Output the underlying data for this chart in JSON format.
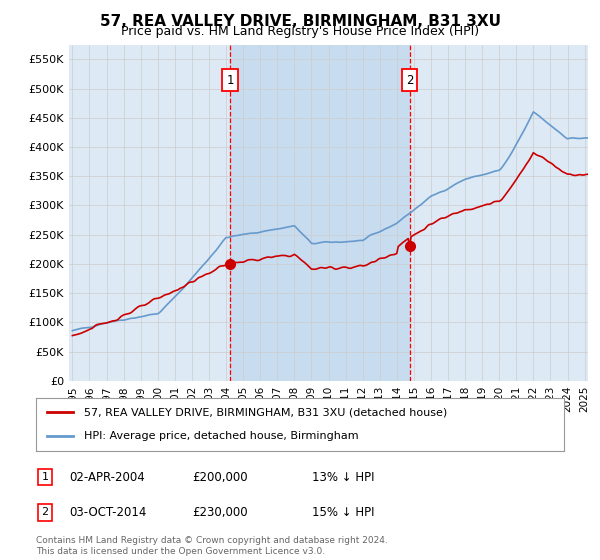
{
  "title": "57, REA VALLEY DRIVE, BIRMINGHAM, B31 3XU",
  "subtitle": "Price paid vs. HM Land Registry's House Price Index (HPI)",
  "background_color": "#ffffff",
  "plot_bg_color": "#ddeaf5",
  "shade_color": "#c8dcf0",
  "grid_color": "#cccccc",
  "red_line_color": "#cc0000",
  "blue_line_color": "#6699cc",
  "sale1_year": 2004.25,
  "sale1_price": 200000,
  "sale2_year": 2014.75,
  "sale2_price": 230000,
  "legend_label_red": "57, REA VALLEY DRIVE, BIRMINGHAM, B31 3XU (detached house)",
  "legend_label_blue": "HPI: Average price, detached house, Birmingham",
  "annotation1_col1": "02-APR-2004",
  "annotation1_col2": "£200,000",
  "annotation1_col3": "13% ↓ HPI",
  "annotation2_col1": "03-OCT-2014",
  "annotation2_col2": "£230,000",
  "annotation2_col3": "15% ↓ HPI",
  "footnote": "Contains HM Land Registry data © Crown copyright and database right 2024.\nThis data is licensed under the Open Government Licence v3.0.",
  "ylim": [
    0,
    575000
  ],
  "yticks": [
    0,
    50000,
    100000,
    150000,
    200000,
    250000,
    300000,
    350000,
    400000,
    450000,
    500000,
    550000
  ],
  "xstart_year": 1995,
  "xend_year": 2025
}
